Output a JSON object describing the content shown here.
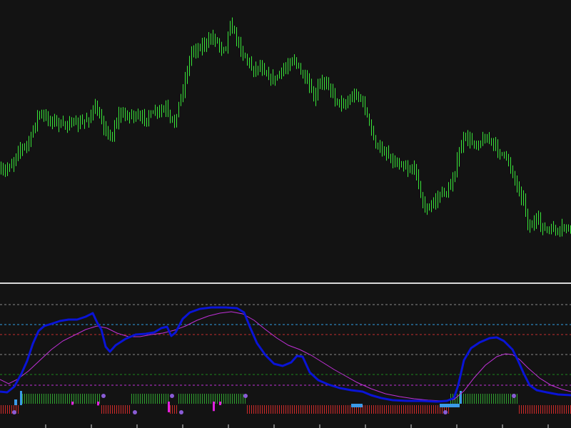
{
  "colors": {
    "background": "#131313",
    "separator": "#d8d8d8",
    "candle": "#39e639",
    "fast_line": "#0a14d6",
    "slow_line": "#c030d8",
    "level_gray": "#8a8a8a",
    "level_blue": "#2f9fe6",
    "level_red": "#c42c2c",
    "level_green": "#1e8a1e",
    "level_magenta": "#c030d8",
    "hist_green": "#2fa32f",
    "hist_red": "#cf2a2a",
    "hist_blue": "#3a9ae8",
    "hist_magenta": "#e020e0",
    "dot_purple": "#8a5cd6"
  },
  "chart_data": [
    {
      "type": "candlestick",
      "title": "",
      "series": [
        {
          "close_path": [
            [
              0,
              240
            ],
            [
              6,
              242
            ],
            [
              12,
              232
            ],
            [
              18,
              228
            ],
            [
              24,
              210
            ],
            [
              30,
              208
            ],
            [
              36,
              204
            ],
            [
              42,
              196
            ],
            [
              48,
              174
            ],
            [
              54,
              158
            ],
            [
              60,
              164
            ],
            [
              66,
              166
            ],
            [
              72,
              170
            ],
            [
              78,
              168
            ],
            [
              84,
              176
            ],
            [
              90,
              176
            ],
            [
              96,
              170
            ],
            [
              102,
              172
            ],
            [
              108,
              176
            ],
            [
              114,
              172
            ],
            [
              120,
              168
            ],
            [
              126,
              164
            ],
            [
              132,
              148
            ],
            [
              138,
              164
            ],
            [
              144,
              174
            ],
            [
              150,
              186
            ],
            [
              156,
              196
            ],
            [
              160,
              176
            ],
            [
              166,
              162
            ],
            [
              172,
              160
            ],
            [
              178,
              162
            ],
            [
              184,
              160
            ],
            [
              190,
              164
            ],
            [
              196,
              166
            ],
            [
              202,
              166
            ],
            [
              208,
              162
            ],
            [
              214,
              160
            ],
            [
              220,
              156
            ],
            [
              226,
              156
            ],
            [
              232,
              152
            ],
            [
              238,
              168
            ],
            [
              244,
              172
            ],
            [
              250,
              146
            ],
            [
              256,
              124
            ],
            [
              262,
              98
            ],
            [
              268,
              72
            ],
            [
              274,
              68
            ],
            [
              280,
              66
            ],
            [
              286,
              62
            ],
            [
              292,
              58
            ],
            [
              298,
              52
            ],
            [
              304,
              58
            ],
            [
              310,
              68
            ],
            [
              316,
              64
            ],
            [
              322,
              30
            ],
            [
              326,
              44
            ],
            [
              332,
              56
            ],
            [
              338,
              72
            ],
            [
              344,
              80
            ],
            [
              350,
              92
            ],
            [
              356,
              98
            ],
            [
              362,
              92
            ],
            [
              368,
              96
            ],
            [
              374,
              104
            ],
            [
              380,
              112
            ],
            [
              386,
              110
            ],
            [
              392,
              102
            ],
            [
              398,
              98
            ],
            [
              404,
              90
            ],
            [
              410,
              80
            ],
            [
              416,
              92
            ],
            [
              422,
              104
            ],
            [
              428,
              112
            ],
            [
              434,
              124
            ],
            [
              440,
              142
            ],
            [
              446,
              118
            ],
            [
              452,
              116
            ],
            [
              458,
              114
            ],
            [
              464,
              128
            ],
            [
              470,
              140
            ],
            [
              476,
              144
            ],
            [
              482,
              146
            ],
            [
              488,
              142
            ],
            [
              494,
              134
            ],
            [
              500,
              132
            ],
            [
              506,
              140
            ],
            [
              512,
              156
            ],
            [
              518,
              176
            ],
            [
              524,
              198
            ],
            [
              530,
              208
            ],
            [
              536,
              212
            ],
            [
              542,
              214
            ],
            [
              548,
              224
            ],
            [
              554,
              230
            ],
            [
              560,
              228
            ],
            [
              566,
              232
            ],
            [
              572,
              238
            ],
            [
              578,
              236
            ],
            [
              584,
              242
            ],
            [
              590,
              280
            ],
            [
              596,
              296
            ],
            [
              602,
              290
            ],
            [
              608,
              282
            ],
            [
              614,
              276
            ],
            [
              620,
              268
            ],
            [
              626,
              272
            ],
            [
              632,
              256
            ],
            [
              638,
              236
            ],
            [
              644,
              210
            ],
            [
              650,
              192
            ],
            [
              656,
              196
            ],
            [
              662,
              200
            ],
            [
              668,
              202
            ],
            [
              674,
              198
            ],
            [
              680,
              194
            ],
            [
              686,
              196
            ],
            [
              692,
              204
            ],
            [
              698,
              212
            ],
            [
              704,
              216
            ],
            [
              710,
              224
            ],
            [
              716,
              236
            ],
            [
              722,
              256
            ],
            [
              728,
              270
            ],
            [
              734,
              282
            ],
            [
              740,
              320
            ],
            [
              746,
              314
            ],
            [
              752,
              308
            ],
            [
              758,
              316
            ],
            [
              764,
              322
            ],
            [
              770,
              324
            ],
            [
              776,
              320
            ],
            [
              782,
              328
            ],
            [
              788,
              318
            ],
            [
              794,
              320
            ],
            [
              800,
              324
            ]
          ]
        }
      ]
    },
    {
      "type": "line",
      "title": "",
      "levels": [
        {
          "y": 427,
          "color": "level_gray"
        },
        {
          "y": 455,
          "color": "level_blue"
        },
        {
          "y": 469,
          "color": "level_red"
        },
        {
          "y": 497,
          "color": "level_gray"
        },
        {
          "y": 525,
          "color": "level_green"
        },
        {
          "y": 540,
          "color": "level_magenta"
        }
      ],
      "series": [
        {
          "color": "fast_line",
          "points": [
            [
              0,
              549
            ],
            [
              10,
              550
            ],
            [
              20,
              542
            ],
            [
              30,
              524
            ],
            [
              38,
              506
            ],
            [
              46,
              482
            ],
            [
              54,
              464
            ],
            [
              62,
              457
            ],
            [
              72,
              454
            ],
            [
              84,
              450
            ],
            [
              96,
              448
            ],
            [
              108,
              448
            ],
            [
              120,
              444
            ],
            [
              130,
              439
            ],
            [
              136,
              452
            ],
            [
              142,
              462
            ],
            [
              148,
              486
            ],
            [
              154,
              493
            ],
            [
              162,
              484
            ],
            [
              176,
              475
            ],
            [
              190,
              469
            ],
            [
              204,
              468
            ],
            [
              216,
              466
            ],
            [
              226,
              460
            ],
            [
              234,
              458
            ],
            [
              240,
              471
            ],
            [
              246,
              466
            ],
            [
              256,
              447
            ],
            [
              266,
              438
            ],
            [
              280,
              433
            ],
            [
              296,
              431
            ],
            [
              316,
              431
            ],
            [
              332,
              432
            ],
            [
              342,
              438
            ],
            [
              350,
              458
            ],
            [
              360,
              481
            ],
            [
              372,
              498
            ],
            [
              384,
              510
            ],
            [
              396,
              513
            ],
            [
              408,
              508
            ],
            [
              416,
              499
            ],
            [
              424,
              500
            ],
            [
              434,
              522
            ],
            [
              446,
              533
            ],
            [
              460,
              539
            ],
            [
              476,
              544
            ],
            [
              492,
              547
            ],
            [
              508,
              549
            ],
            [
              520,
              554
            ],
            [
              534,
              558
            ],
            [
              550,
              561
            ],
            [
              570,
              562
            ],
            [
              590,
              562
            ],
            [
              612,
              563
            ],
            [
              626,
              562
            ],
            [
              636,
              558
            ],
            [
              642,
              540
            ],
            [
              650,
              505
            ],
            [
              660,
              488
            ],
            [
              672,
              480
            ],
            [
              686,
              474
            ],
            [
              696,
              473
            ],
            [
              706,
              478
            ],
            [
              718,
              490
            ],
            [
              726,
              506
            ],
            [
              734,
              524
            ],
            [
              742,
              540
            ],
            [
              752,
              547
            ],
            [
              766,
              550
            ],
            [
              782,
              553
            ],
            [
              800,
              554
            ]
          ]
        },
        {
          "color": "slow_line",
          "points": [
            [
              0,
              532
            ],
            [
              12,
              538
            ],
            [
              24,
              532
            ],
            [
              40,
              520
            ],
            [
              56,
              505
            ],
            [
              72,
              490
            ],
            [
              88,
              478
            ],
            [
              104,
              470
            ],
            [
              120,
              462
            ],
            [
              136,
              457
            ],
            [
              150,
              460
            ],
            [
              164,
              467
            ],
            [
              180,
              472
            ],
            [
              196,
              472
            ],
            [
              212,
              469
            ],
            [
              228,
              467
            ],
            [
              244,
              463
            ],
            [
              260,
              457
            ],
            [
              276,
              449
            ],
            [
              292,
              443
            ],
            [
              308,
              439
            ],
            [
              324,
              437
            ],
            [
              340,
              440
            ],
            [
              356,
              449
            ],
            [
              372,
              462
            ],
            [
              388,
              474
            ],
            [
              404,
              484
            ],
            [
              420,
              490
            ],
            [
              436,
              498
            ],
            [
              452,
              508
            ],
            [
              468,
              518
            ],
            [
              484,
              527
            ],
            [
              500,
              536
            ],
            [
              520,
              545
            ],
            [
              540,
              552
            ],
            [
              560,
              556
            ],
            [
              580,
              559
            ],
            [
              600,
              561
            ],
            [
              620,
              562
            ],
            [
              636,
              560
            ],
            [
              650,
              548
            ],
            [
              664,
              530
            ],
            [
              680,
              512
            ],
            [
              696,
              500
            ],
            [
              708,
              496
            ],
            [
              718,
              497
            ],
            [
              728,
              504
            ],
            [
              740,
              516
            ],
            [
              756,
              530
            ],
            [
              772,
              540
            ],
            [
              788,
              546
            ],
            [
              800,
              549
            ]
          ]
        }
      ]
    }
  ]
}
